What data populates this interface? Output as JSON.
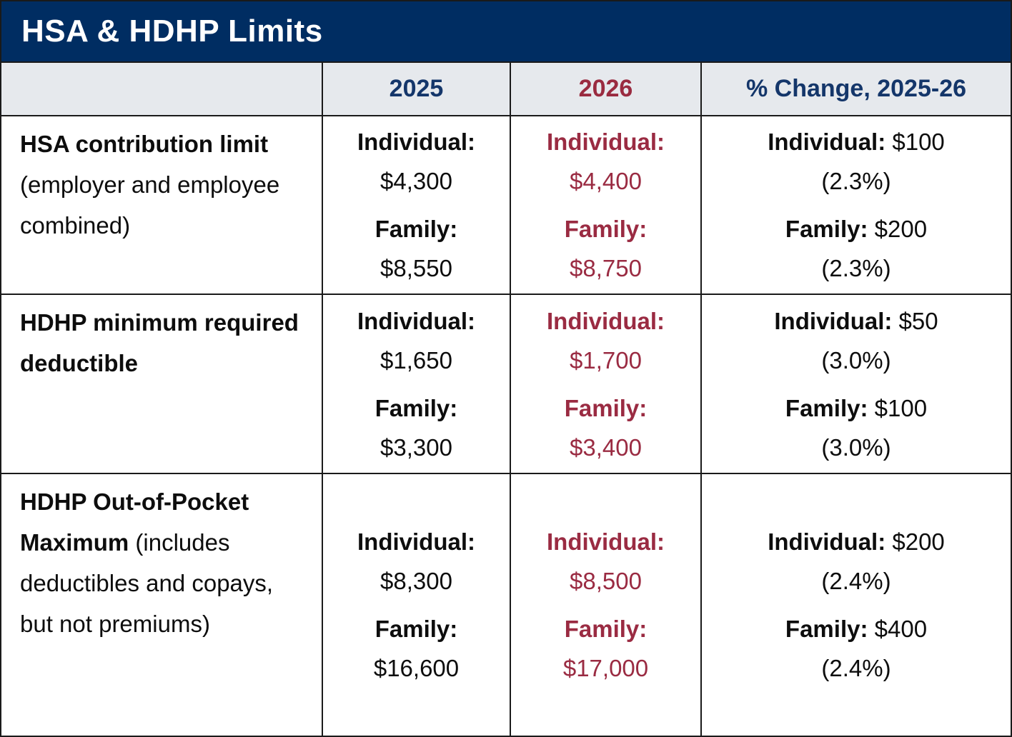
{
  "title": "HSA & HDHP Limits",
  "colors": {
    "title_bar_navy": "#002d62",
    "header_text_navy": "#14366a",
    "maroon": "#9a2b42",
    "header_bg": "#e6e9ed",
    "border": "#1a1a1a",
    "body_text": "#0d0d0d"
  },
  "header": {
    "year_2025": "2025",
    "year_2026": "2026",
    "pct_change": "% Change, 2025-26"
  },
  "rows": [
    {
      "name": "HSA contribution limit",
      "name_note": "(employer and employee combined)",
      "y2025": {
        "individual_label": "Individual:",
        "individual": "$4,300",
        "family_label": "Family:",
        "family": "$8,550"
      },
      "y2026": {
        "individual_label": "Individual:",
        "individual": "$4,400",
        "family_label": "Family:",
        "family": "$8,750"
      },
      "change": {
        "individual_label": "Individual:",
        "individual": "$100",
        "individual_pct": "(2.3%)",
        "family_label": "Family:",
        "family": "$200",
        "family_pct": "(2.3%)"
      }
    },
    {
      "name": "HDHP minimum required deductible",
      "name_note": "",
      "y2025": {
        "individual_label": "Individual:",
        "individual": "$1,650",
        "family_label": "Family:",
        "family": "$3,300"
      },
      "y2026": {
        "individual_label": "Individual:",
        "individual": "$1,700",
        "family_label": "Family:",
        "family": "$3,400"
      },
      "change": {
        "individual_label": "Individual:",
        "individual": "$50",
        "individual_pct": "(3.0%)",
        "family_label": "Family:",
        "family": "$100",
        "family_pct": "(3.0%)"
      }
    },
    {
      "name": "HDHP Out-of-Pocket Maximum",
      "name_note": "(includes deductibles and copays, but not premiums)",
      "y2025": {
        "individual_label": "Individual:",
        "individual": "$8,300",
        "family_label": "Family:",
        "family": "$16,600"
      },
      "y2026": {
        "individual_label": "Individual:",
        "individual": "$8,500",
        "family_label": "Family:",
        "family": "$17,000"
      },
      "change": {
        "individual_label": "Individual:",
        "individual": "$200",
        "individual_pct": "(2.4%)",
        "family_label": "Family:",
        "family": "$400",
        "family_pct": "(2.4%)"
      }
    }
  ]
}
